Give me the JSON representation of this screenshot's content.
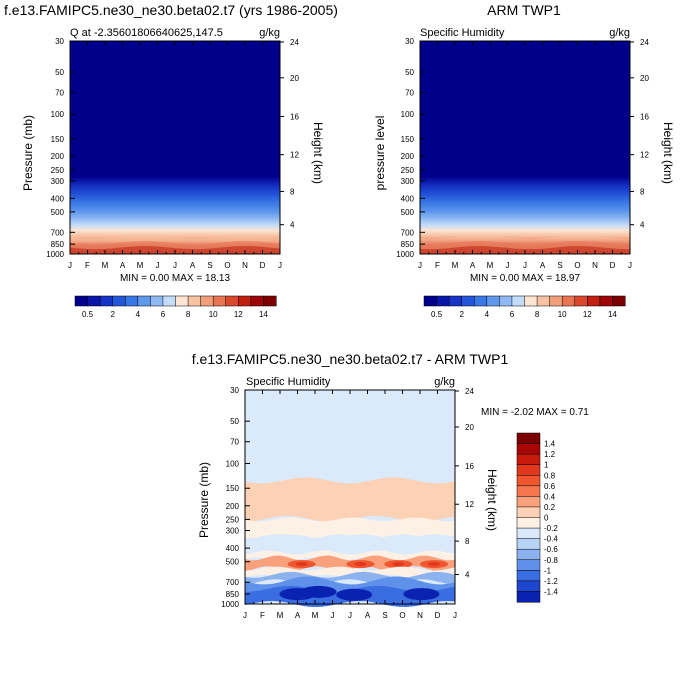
{
  "chart_data": [
    {
      "type": "heatmap",
      "title": "f.e13.FAMIPC5.ne30_ne30.beta02.t7 (yrs 1986-2005)",
      "subtitle_left": "Q at -2.35601806640625,147.5",
      "units": "g/kg",
      "ylabel": "Pressure (mb)",
      "ylabel_right": "Height (km)",
      "x_ticks": [
        "J",
        "F",
        "M",
        "A",
        "M",
        "J",
        "J",
        "A",
        "S",
        "O",
        "N",
        "D",
        "J"
      ],
      "y_ticks": [
        30,
        50,
        70,
        100,
        150,
        200,
        250,
        300,
        400,
        500,
        700,
        850,
        1000
      ],
      "y_right_ticks": [
        24,
        20,
        16,
        12,
        8,
        4
      ],
      "stats": "MIN =   0.00 MAX =  18.13",
      "colorbar_labels": [
        "0.5",
        "2",
        "4",
        "6",
        "8",
        "10",
        "12",
        "14"
      ],
      "colors": [
        "#00008b",
        "#0a16a8",
        "#1533c5",
        "#2357d8",
        "#3a78e6",
        "#5f98ec",
        "#8fb9f2",
        "#c3dcf8",
        "#fbe4d2",
        "#f8c3a3",
        "#f19f7b",
        "#e77453",
        "#d9472c",
        "#c0210f",
        "#9e0505",
        "#7d0000"
      ],
      "min": 0.0,
      "max": 18.13
    },
    {
      "type": "heatmap",
      "title": "ARM TWP1",
      "subtitle_left": "Specific Humidity",
      "units": "g/kg",
      "ylabel": "pressure level",
      "ylabel_right": "Height (km)",
      "x_ticks": [
        "J",
        "F",
        "M",
        "A",
        "M",
        "J",
        "J",
        "A",
        "S",
        "O",
        "N",
        "D",
        "J"
      ],
      "y_ticks": [
        30,
        50,
        70,
        100,
        150,
        200,
        250,
        300,
        400,
        500,
        700,
        850,
        1000
      ],
      "y_right_ticks": [
        24,
        20,
        16,
        12,
        8,
        4
      ],
      "stats": "MIN =   0.00 MAX =  18.97",
      "colorbar_labels": [
        "0.5",
        "2",
        "4",
        "6",
        "8",
        "10",
        "12",
        "14"
      ],
      "min": 0.0,
      "max": 18.97
    },
    {
      "type": "heatmap",
      "title": "f.e13.FAMIPC5.ne30_ne30.beta02.t7 - ARM TWP1",
      "subtitle_left": "Specific Humidity",
      "units": "g/kg",
      "ylabel": "Pressure (mb)",
      "ylabel_right": "Height (km)",
      "x_ticks": [
        "J",
        "F",
        "M",
        "A",
        "M",
        "J",
        "J",
        "A",
        "S",
        "O",
        "N",
        "D",
        "J"
      ],
      "y_ticks": [
        30,
        50,
        70,
        100,
        150,
        200,
        250,
        300,
        400,
        500,
        700,
        850,
        1000
      ],
      "y_right_ticks": [
        24,
        20,
        16,
        12,
        8,
        4
      ],
      "stats": "MIN =  -2.02 MAX =    0.71",
      "colorbar_labels": [
        "1.4",
        "1.2",
        "1",
        "0.8",
        "0.6",
        "0.4",
        "0.2",
        "0",
        "-0.2",
        "-0.4",
        "-0.6",
        "-0.8",
        "-1",
        "-1.2",
        "-1.4"
      ],
      "colors": [
        "#7d0000",
        "#a90606",
        "#c81b0c",
        "#e1371c",
        "#f0562f",
        "#f6774c",
        "#f9a17c",
        "#fcd1b5",
        "#fdf1e6",
        "#dbeafb",
        "#b9d3f6",
        "#8cb3f0",
        "#5f91ea",
        "#3a6ce2",
        "#1e46cf",
        "#0a22b0"
      ],
      "min": -2.02,
      "max": 0.71
    }
  ]
}
